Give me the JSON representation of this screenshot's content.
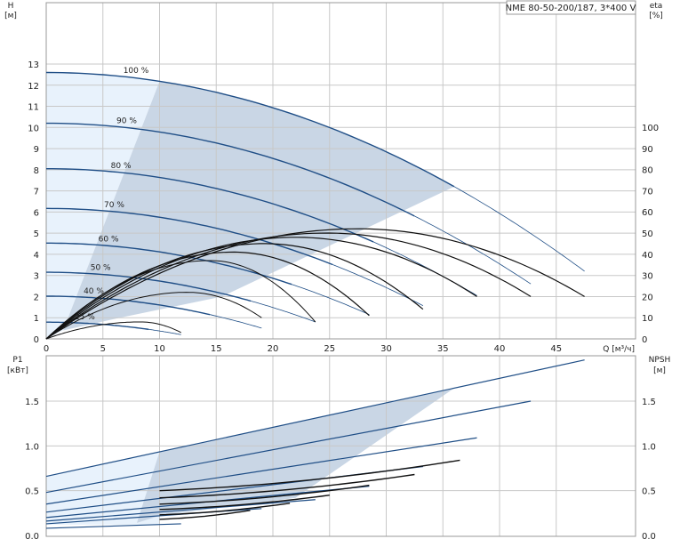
{
  "chart_data": [
    {
      "type": "line",
      "title": "NME 80-50-200/187, 3*400 V",
      "xlabel": "Q [м³/ч]",
      "ylabel": "H [м]",
      "y2label": "eta [%]",
      "ylabel_lines": [
        "H",
        "[м]"
      ],
      "y2label_lines": [
        "eta",
        "[%]"
      ],
      "xlim": [
        0,
        52
      ],
      "ylim": [
        0,
        13
      ],
      "y2lim": [
        0,
        130
      ],
      "x_ticks": [
        0,
        5,
        10,
        15,
        20,
        25,
        30,
        35,
        40,
        45
      ],
      "y_ticks": [
        0,
        1,
        2,
        3,
        4,
        5,
        6,
        7,
        8,
        9,
        10,
        11,
        12,
        13
      ],
      "y2_ticks": [
        0,
        10,
        20,
        30,
        40,
        50,
        60,
        70,
        80,
        90,
        100
      ],
      "grid": true,
      "colors": {
        "grid": "#c8c8c8",
        "pump_curve": "#1f4e86",
        "eff_curve": "#111111",
        "area_dark": "#c9d6e5",
        "area_light": "#e8f2fc"
      },
      "head_curves": [
        {
          "label": "100 %",
          "h0": 12.6,
          "qmax": 47.5,
          "hend": 3.2
        },
        {
          "label": "90 %",
          "h0": 10.2,
          "qmax": 42.75,
          "hend": 2.6
        },
        {
          "label": "80 %",
          "h0": 8.05,
          "qmax": 38.0,
          "hend": 2.05
        },
        {
          "label": "70 %",
          "h0": 6.17,
          "qmax": 33.25,
          "hend": 1.57
        },
        {
          "label": "60 %",
          "h0": 4.53,
          "qmax": 28.5,
          "hend": 1.15
        },
        {
          "label": "50 %",
          "h0": 3.15,
          "qmax": 23.75,
          "hend": 0.8
        },
        {
          "label": "40 %",
          "h0": 2.02,
          "qmax": 19.0,
          "hend": 0.51
        },
        {
          "label": "25 %",
          "h0": 0.79,
          "qmax": 11.9,
          "hend": 0.2
        }
      ],
      "efficiency_curves": [
        {
          "peak_q": 27.5,
          "peak_eta": 52,
          "qmax": 47.5,
          "eta_end": 20
        },
        {
          "peak_q": 24.75,
          "peak_eta": 50,
          "qmax": 42.75,
          "eta_end": 20
        },
        {
          "peak_q": 22.0,
          "peak_eta": 48,
          "qmax": 38.0,
          "eta_end": 20
        },
        {
          "peak_q": 19.25,
          "peak_eta": 45,
          "qmax": 33.25,
          "eta_end": 14
        },
        {
          "peak_q": 16.5,
          "peak_eta": 41,
          "qmax": 28.5,
          "eta_end": 11
        },
        {
          "peak_q": 14.5,
          "peak_eta": 37,
          "qmax": 23.75,
          "eta_end": 8
        },
        {
          "peak_q": 12.5,
          "peak_eta": 22,
          "qmax": 19.0,
          "eta_end": 10
        },
        {
          "peak_q": 8.3,
          "peak_eta": 8,
          "qmax": 11.9,
          "eta_end": 3
        }
      ]
    },
    {
      "type": "line",
      "ylabel": "P1 [кВт]",
      "y2label": "NPSH [м]",
      "ylabel_lines": [
        "P1",
        "[кВт]"
      ],
      "y2label_lines": [
        "NPSH",
        "[м]"
      ],
      "xlim": [
        0,
        52
      ],
      "ylim": [
        0,
        2.0
      ],
      "y_ticks": [
        0.0,
        0.5,
        1.0,
        1.5
      ],
      "y_tick_labels": [
        "0.0",
        "0.5",
        "1.0",
        "1.5"
      ],
      "grid": true,
      "power_curves": [
        {
          "q": [
            0,
            47.5
          ],
          "p": [
            0.66,
            1.96
          ]
        },
        {
          "q": [
            0,
            42.75
          ],
          "p": [
            0.48,
            1.5
          ]
        },
        {
          "q": [
            0,
            38.0
          ],
          "p": [
            0.35,
            1.09
          ]
        },
        {
          "q": [
            0,
            33.25
          ],
          "p": [
            0.26,
            0.77
          ]
        },
        {
          "q": [
            0,
            28.5
          ],
          "p": [
            0.2,
            0.55
          ]
        },
        {
          "q": [
            0,
            23.75
          ],
          "p": [
            0.16,
            0.4
          ]
        },
        {
          "q": [
            0,
            19.0
          ],
          "p": [
            0.13,
            0.3
          ]
        },
        {
          "q": [
            0,
            11.9
          ],
          "p": [
            0.08,
            0.13
          ]
        }
      ],
      "npsh_curves": [
        {
          "q": [
            10,
            36.5
          ],
          "n": [
            0.5,
            0.84
          ]
        },
        {
          "q": [
            10,
            32.5
          ],
          "n": [
            0.42,
            0.68
          ]
        },
        {
          "q": [
            10,
            28.5
          ],
          "n": [
            0.35,
            0.56
          ]
        },
        {
          "q": [
            10,
            25.0
          ],
          "n": [
            0.29,
            0.45
          ]
        },
        {
          "q": [
            10,
            21.5
          ],
          "n": [
            0.23,
            0.36
          ]
        },
        {
          "q": [
            10,
            18.0
          ],
          "n": [
            0.18,
            0.28
          ]
        }
      ]
    }
  ]
}
